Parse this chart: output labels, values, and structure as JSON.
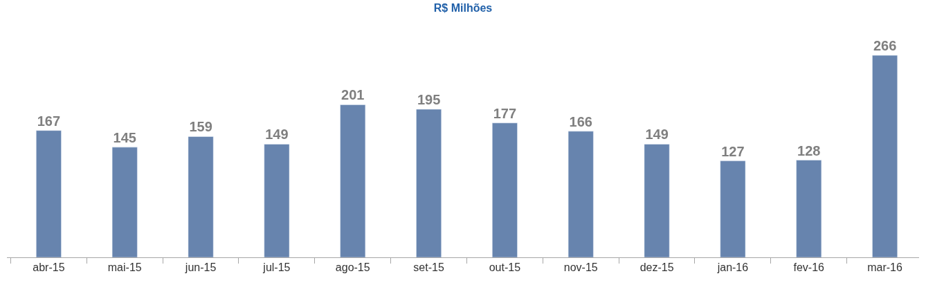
{
  "chart_data": {
    "type": "bar",
    "title": "R$ Milhões",
    "categories": [
      "abr-15",
      "mai-15",
      "jun-15",
      "jul-15",
      "ago-15",
      "set-15",
      "out-15",
      "nov-15",
      "dez-15",
      "jan-16",
      "fev-16",
      "mar-16"
    ],
    "values": [
      167,
      145,
      159,
      149,
      201,
      195,
      177,
      166,
      149,
      127,
      128,
      266
    ],
    "color": "#6784ae",
    "data_labels": true
  }
}
